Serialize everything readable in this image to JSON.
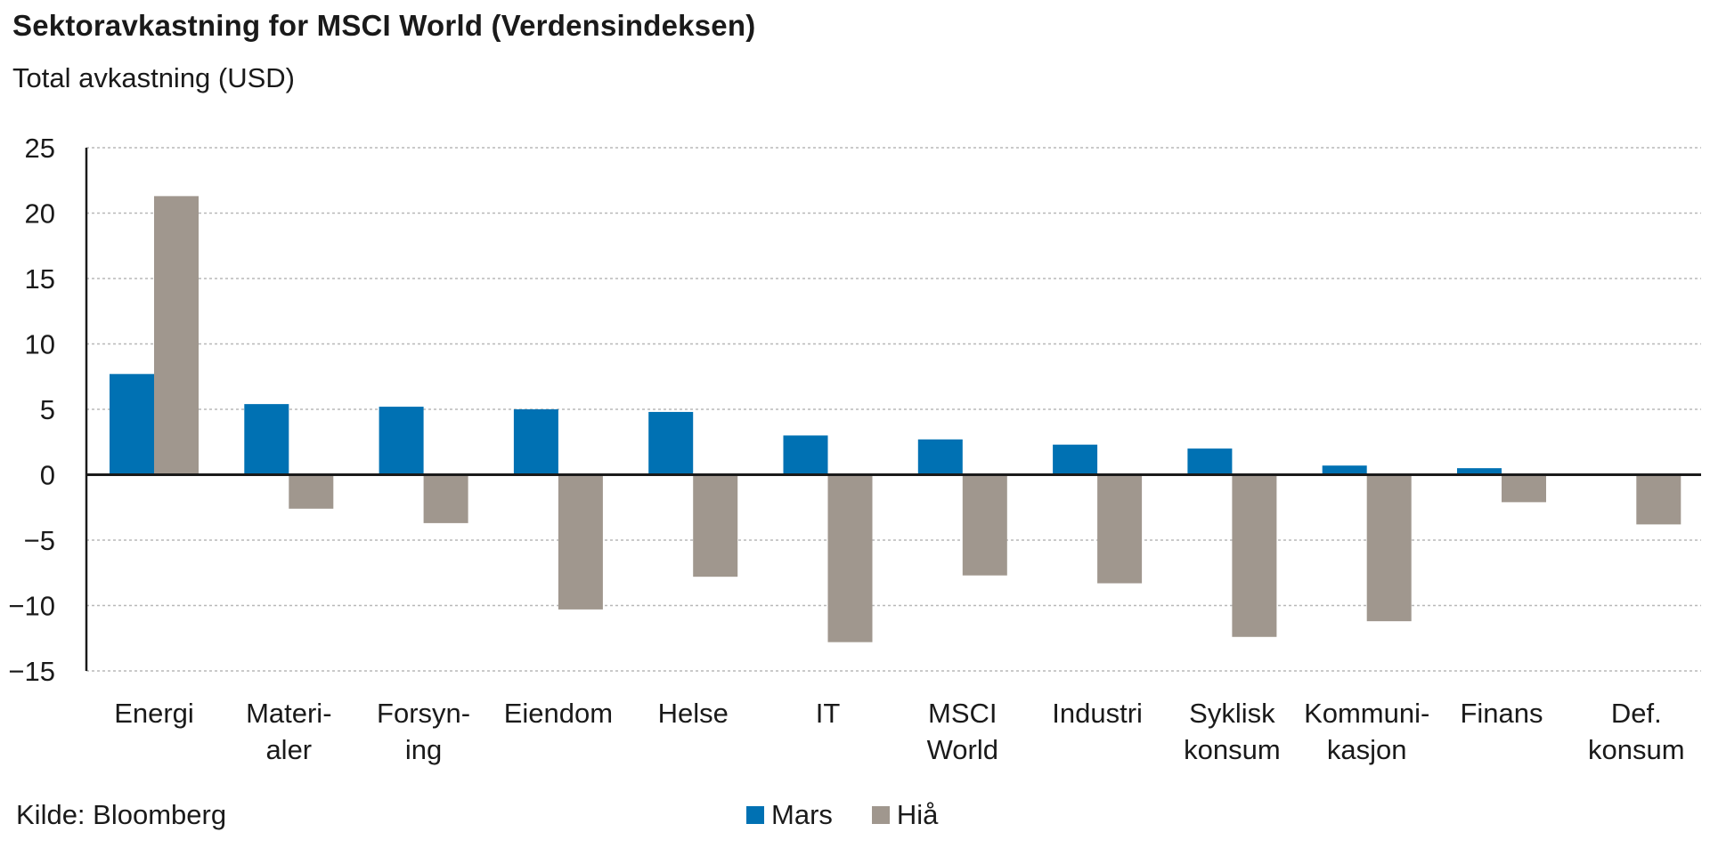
{
  "chart_data": {
    "type": "bar",
    "title": "Sektoravkastning for MSCI World (Verdensindeksen)",
    "subtitle": "Total avkastning (USD)",
    "source": "Kilde: Bloomberg",
    "categories": [
      [
        "Energi"
      ],
      [
        "Materi-",
        "aler"
      ],
      [
        "Forsyn-",
        "ing"
      ],
      [
        "Eiendom"
      ],
      [
        "Helse"
      ],
      [
        "IT"
      ],
      [
        "MSCI",
        "World"
      ],
      [
        "Industri"
      ],
      [
        "Syklisk",
        "konsum"
      ],
      [
        "Kommuni-",
        "kasjon"
      ],
      [
        "Finans"
      ],
      [
        "Def.",
        "konsum"
      ]
    ],
    "series": [
      {
        "name": "Mars",
        "color": "#0071b3",
        "values": [
          7.7,
          5.4,
          5.2,
          5.0,
          4.8,
          3.0,
          2.7,
          2.3,
          2.0,
          0.7,
          0.5,
          0.1
        ]
      },
      {
        "name": "Hiå",
        "color": "#a0978e",
        "values": [
          21.3,
          -2.6,
          -3.7,
          -10.3,
          -7.8,
          -12.8,
          -7.7,
          -8.3,
          -12.4,
          -11.2,
          -2.1,
          -3.8
        ]
      }
    ],
    "ylim": [
      -15,
      25
    ],
    "yticks": [
      25,
      20,
      15,
      10,
      5,
      0,
      -5,
      -10,
      -15
    ],
    "xlabel": "",
    "ylabel": "",
    "grid": true,
    "legend": "bottom-center"
  }
}
